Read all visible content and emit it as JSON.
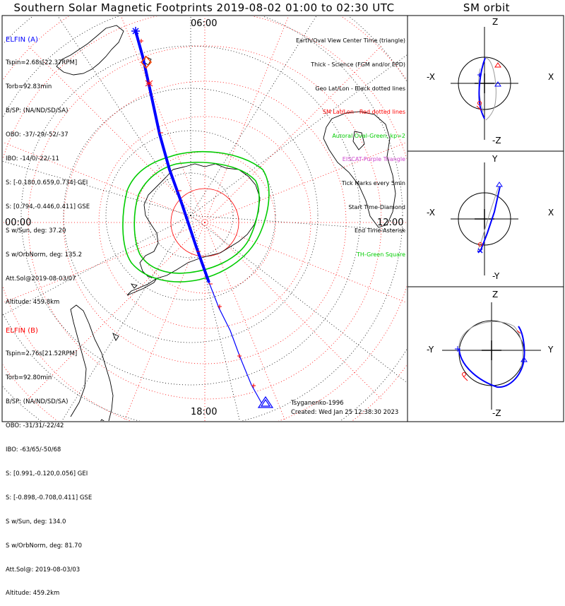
{
  "header": {
    "title": "Southern Solar Magnetic Footprints 2019-08-02 01:00 to 02:30 UTC",
    "sm_title": "SM orbit"
  },
  "map": {
    "time_labels": {
      "top": "06:00",
      "left": "00:00",
      "right": "12:00",
      "bottom": "18:00"
    },
    "colors": {
      "track_a": "#0000ff",
      "oval": "#00cc00",
      "grid_red": "#ff0000",
      "grid_black": "#000000"
    }
  },
  "elfin_a": {
    "name": "ELFIN (A)",
    "lines": [
      "Tspin=2.68s[22.37RPM]",
      "Torb=92.83min",
      "B/SP: (NA/ND/SD/SA)",
      "OBO: -37/-29/-52/-37",
      "IBO: -14/0/-22/-11",
      "S: [-0.180,0.659,0.734] GEI",
      "S: [0.794,-0.446,0.411] GSE",
      "S w/Sun, deg: 37.20",
      "S w/OrbNorm, deg: 135.2",
      "Att.Sol@2019-08-03/07",
      "Altitude: 459.8km"
    ]
  },
  "elfin_b": {
    "name": "ELFIN (B)",
    "lines": [
      "Tspin=2.76s[21.52RPM]",
      "Torb=92.80min",
      "B/SP: (NA/ND/SD/SA)",
      "OBO: -31/31/-22/42",
      "IBO: -63/65/-50/68",
      "S: [0.991,-0.120,0.056] GEI",
      "S: [-0.898,-0.708,0.411] GSE",
      "S w/Sun, deg: 134.0",
      "S w/OrbNorm, deg: 81.70",
      "Att.Sol@: 2019-08-03/03",
      "Altitude: 459.2km"
    ]
  },
  "legend": {
    "lines": [
      {
        "text": "Earth/Oval View Center Time (triangle)",
        "color": "black"
      },
      {
        "text": "Thick - Science (FGM and/or EPD)",
        "color": "black"
      },
      {
        "text": "Geo Lat/Lon - Black dotted lines",
        "color": "black"
      },
      {
        "text": "SM Lat/Lon - Red dotted lines",
        "color": "red"
      },
      {
        "text": "Auroral Oval-Green, kp=2",
        "color": "green"
      },
      {
        "text": "EISCAT-Purple Triangle",
        "color": "purple"
      },
      {
        "text": "Tick Marks every 5min",
        "color": "black"
      },
      {
        "text": "Start Time-Diamond",
        "color": "black"
      },
      {
        "text": "End Time-Asterisk",
        "color": "black"
      },
      {
        "text": "TH-Green Square",
        "color": "green"
      }
    ]
  },
  "credits": {
    "author": "Tsyganenko-1996",
    "created": "Created: Wed Jan 25 12:38:30 2023"
  },
  "panels": [
    {
      "top": "Z",
      "bottom": "-Z",
      "left": "-X",
      "right": "X"
    },
    {
      "top": "Y",
      "bottom": "-Y",
      "left": "-X",
      "right": "X"
    },
    {
      "top": "Z",
      "bottom": "-Z",
      "left": "-Y",
      "right": "Y"
    }
  ]
}
